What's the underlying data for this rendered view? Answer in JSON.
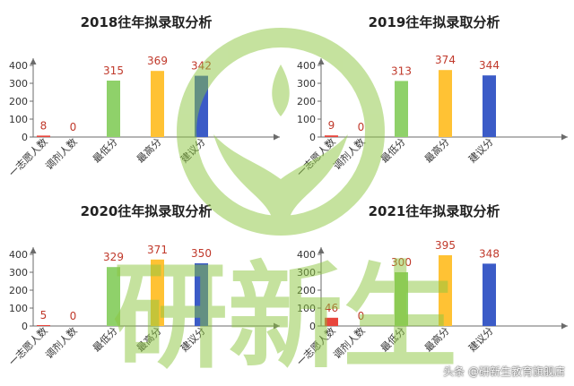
{
  "chart_data": [
    {
      "type": "bar",
      "title": "2018往年拟录取分析",
      "categories": [
        "一志愿人数",
        "调剂人数",
        "最低分",
        "最高分",
        "建议分"
      ],
      "values": [
        8,
        0,
        315,
        369,
        342
      ],
      "ylim": [
        0,
        400
      ],
      "yticks": [
        0,
        100,
        200,
        300,
        400
      ],
      "bar_colors": [
        "#e8453c",
        "#e8453c",
        "#8fd16a",
        "#ffc234",
        "#3b5bc7"
      ],
      "grid": false
    },
    {
      "type": "bar",
      "title": "2019往年拟录取分析",
      "categories": [
        "一志愿人数",
        "调剂人数",
        "最低分",
        "最高分",
        "建议分"
      ],
      "values": [
        9,
        0,
        313,
        374,
        344
      ],
      "ylim": [
        0,
        400
      ],
      "yticks": [
        0,
        100,
        200,
        300,
        400
      ],
      "bar_colors": [
        "#e8453c",
        "#e8453c",
        "#8fd16a",
        "#ffc234",
        "#3b5bc7"
      ],
      "grid": false
    },
    {
      "type": "bar",
      "title": "2020往年拟录取分析",
      "categories": [
        "一志愿人数",
        "调剂人数",
        "最低分",
        "最高分",
        "建议分"
      ],
      "values": [
        5,
        0,
        329,
        371,
        350
      ],
      "ylim": [
        0,
        400
      ],
      "yticks": [
        0,
        100,
        200,
        300,
        400
      ],
      "bar_colors": [
        "#e8453c",
        "#e8453c",
        "#8fd16a",
        "#ffc234",
        "#3b5bc7"
      ],
      "grid": false
    },
    {
      "type": "bar",
      "title": "2021往年拟录取分析",
      "categories": [
        "一志愿人数",
        "调剂人数",
        "最低分",
        "最高分",
        "建议分"
      ],
      "values": [
        46,
        0,
        300,
        395,
        348
      ],
      "ylim": [
        0,
        400
      ],
      "yticks": [
        0,
        100,
        200,
        300,
        400
      ],
      "bar_colors": [
        "#e8453c",
        "#e8453c",
        "#8fd16a",
        "#ffc234",
        "#3b5bc7"
      ],
      "grid": false
    }
  ],
  "watermark": {
    "text": "研新生",
    "color": "#8cc63f"
  },
  "credit": "头条 @研新生教育旗舰店",
  "colors": {
    "value_label": "#c0392b",
    "axis": "#6b6b6b",
    "tick_text": "#333333"
  }
}
